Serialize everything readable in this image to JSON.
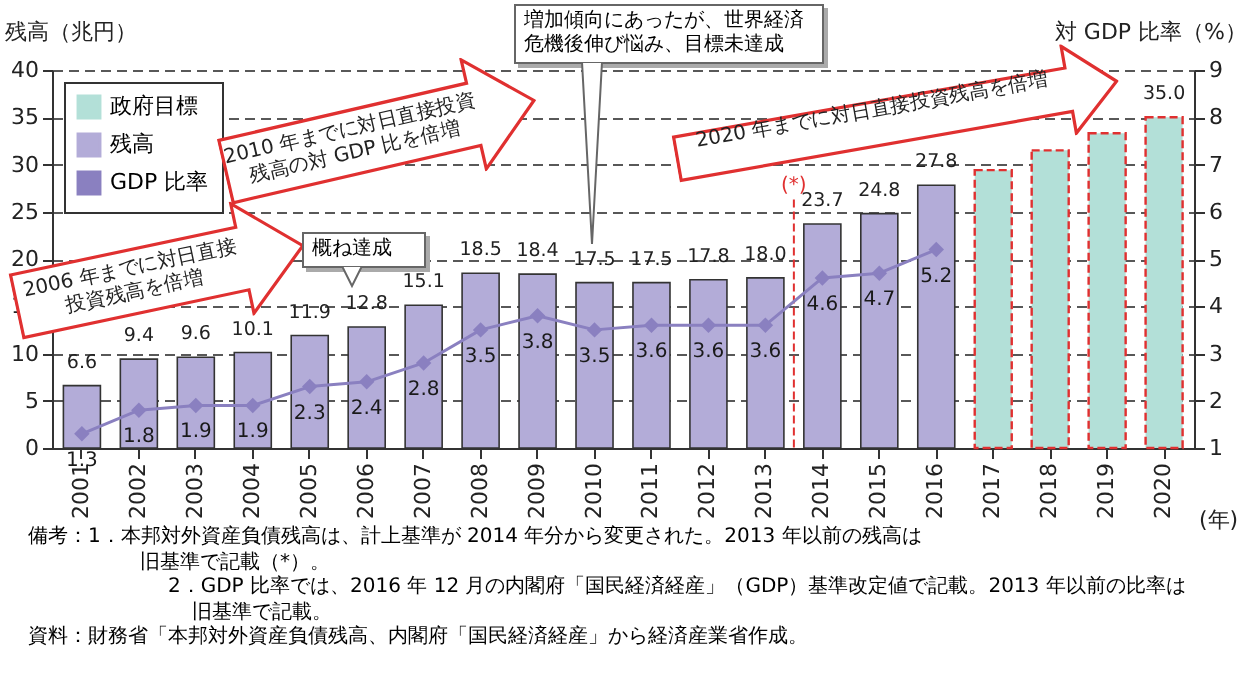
{
  "chart_data": {
    "type": "bar",
    "ylabel": "残高（兆円）",
    "y2label": "対 GDP 比率（%）",
    "xlabel": "(年)",
    "categories": [
      "2001",
      "2002",
      "2003",
      "2004",
      "2005",
      "2006",
      "2007",
      "2008",
      "2009",
      "2010",
      "2011",
      "2012",
      "2013",
      "2014",
      "2015",
      "2016",
      "2017",
      "2018",
      "2019",
      "2020"
    ],
    "series": [
      {
        "name": "政府目標",
        "color": "#b3e0d8",
        "line_style": "dashed",
        "values": [
          null,
          null,
          null,
          null,
          null,
          null,
          null,
          null,
          null,
          null,
          null,
          null,
          null,
          null,
          null,
          null,
          29.4,
          31.5,
          33.3,
          35.0
        ],
        "value_labels": [
          null,
          null,
          null,
          null,
          null,
          null,
          null,
          null,
          null,
          null,
          null,
          null,
          null,
          null,
          null,
          null,
          null,
          null,
          null,
          "35.0"
        ]
      },
      {
        "name": "残高",
        "color": "#b3acd8",
        "values": [
          6.6,
          9.4,
          9.6,
          10.1,
          11.9,
          12.8,
          15.1,
          18.5,
          18.4,
          17.5,
          17.5,
          17.8,
          18.0,
          23.7,
          24.8,
          27.8,
          null,
          null,
          null,
          null
        ],
        "value_labels": [
          "6.6",
          "9.4",
          "9.6",
          "10.1",
          "11.9",
          "12.8",
          "15.1",
          "18.5",
          "18.4",
          "17.5",
          "17.5",
          "17.8",
          "18.0",
          "23.7",
          "24.8",
          "27.8",
          null,
          null,
          null,
          null
        ]
      },
      {
        "name": "GDP 比率",
        "type": "line",
        "axis": "y2",
        "color": "#8a80c0",
        "marker": "diamond",
        "values": [
          1.3,
          1.8,
          1.9,
          1.9,
          2.3,
          2.4,
          2.8,
          3.5,
          3.8,
          3.5,
          3.6,
          3.6,
          3.6,
          4.6,
          4.7,
          5.2,
          null,
          null,
          null,
          null
        ],
        "value_labels": [
          "1.3",
          "1.8",
          "1.9",
          "1.9",
          "2.3",
          "2.4",
          "2.8",
          "3.5",
          "3.8",
          "3.5",
          "3.6",
          "3.6",
          "3.6",
          "4.6",
          "4.7",
          "5.2",
          null,
          null,
          null,
          null
        ]
      }
    ],
    "ylim": [
      0,
      40
    ],
    "yticks": [
      0,
      5,
      10,
      15,
      20,
      25,
      30,
      35,
      40
    ],
    "y2lim": [
      1,
      9
    ],
    "y2ticks": [
      1,
      2,
      3,
      4,
      5,
      6,
      7,
      8,
      9
    ],
    "grid": "y",
    "legend": "top left",
    "ref_lines": [
      {
        "axis": "x",
        "value": "2014",
        "label": "(*)",
        "color": "#e03030",
        "line_style": "dashed"
      }
    ],
    "annotations": [
      "2006 年までに対日直接投資残高を倍増",
      "2010 年までに対日直接投資残高の対 GDP 比を倍増",
      "2020 年までに対日直接投資残高を倍増",
      "概ね達成",
      "増加傾向にあったが、世界経済危機後伸び悩み、目標未達成",
      "備考：1．本邦対外資産負債残高は、計上基準が 2014 年分から変更された。2013 年以前の残高は旧基準で記載（*）。",
      "2．GDP 比率では、2016 年 12 月の内閣府「国民経済経産」（GDP）基準改定値で記載。2013 年以前の比率は旧基準で記載。",
      "資料：財務省「本邦対外資産負債残高、内閣府「国民経済経産」から経済産業省作成。"
    ]
  }
}
